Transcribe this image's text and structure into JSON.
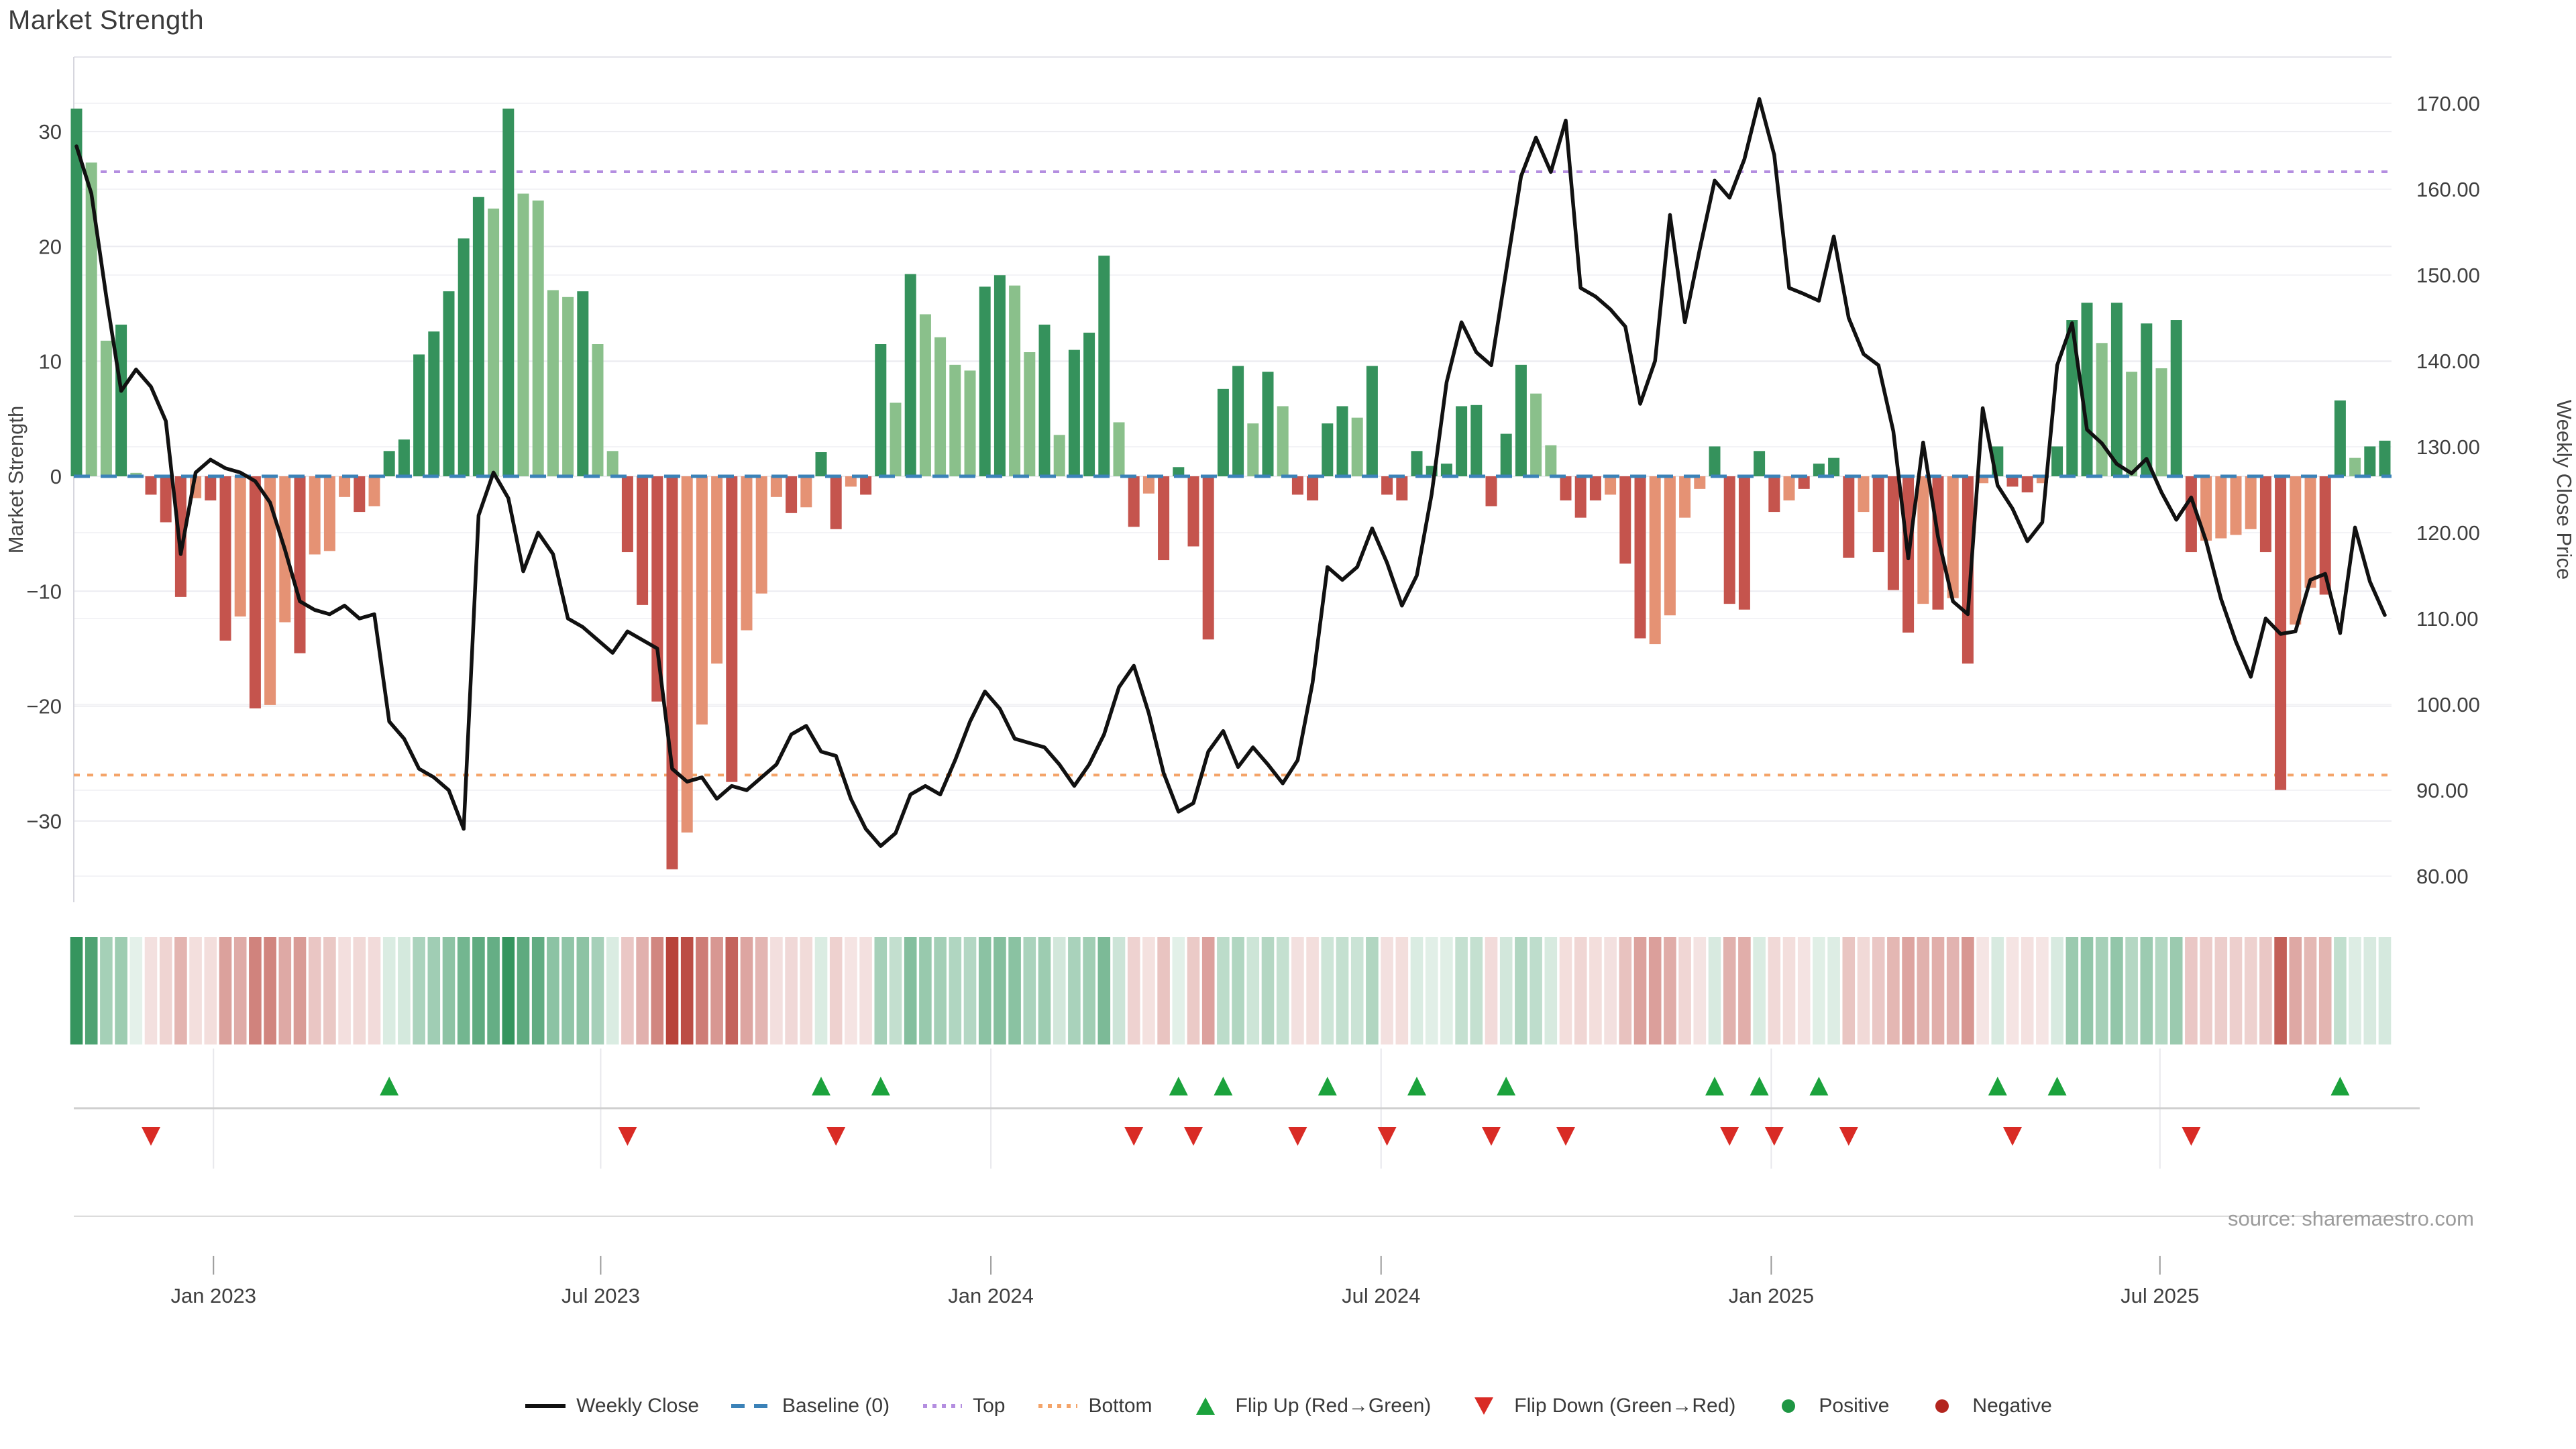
{
  "title": "Market Strength",
  "source": "source: sharemaestro.com",
  "axes": {
    "left_title": "Market Strength",
    "right_title": "Weekly Close Price",
    "left_ticks": [
      {
        "v": 30,
        "label": "30"
      },
      {
        "v": 20,
        "label": "20"
      },
      {
        "v": 10,
        "label": "10"
      },
      {
        "v": 0,
        "label": "0"
      },
      {
        "v": -10,
        "label": "−10"
      },
      {
        "v": -20,
        "label": "−20"
      },
      {
        "v": -30,
        "label": "−30"
      }
    ],
    "right_ticks": [
      {
        "v": 170,
        "label": "170.00"
      },
      {
        "v": 160,
        "label": "160.00"
      },
      {
        "v": 150,
        "label": "150.00"
      },
      {
        "v": 140,
        "label": "140.00"
      },
      {
        "v": 130,
        "label": "130.00"
      },
      {
        "v": 120,
        "label": "120.00"
      },
      {
        "v": 110,
        "label": "110.00"
      },
      {
        "v": 100,
        "label": "100.00"
      },
      {
        "v": 90,
        "label": "90.00"
      },
      {
        "v": 80,
        "label": "80.00"
      }
    ],
    "x_ticks": [
      {
        "week": 9.2,
        "label": "Jan 2023"
      },
      {
        "week": 35.2,
        "label": "Jul 2023"
      },
      {
        "week": 61.4,
        "label": "Jan 2024"
      },
      {
        "week": 87.6,
        "label": "Jul 2024"
      },
      {
        "week": 113.8,
        "label": "Jan 2025"
      },
      {
        "week": 139.9,
        "label": "Jul 2025"
      }
    ]
  },
  "legend": [
    {
      "label": "Weekly Close",
      "type": "line",
      "color": "#111111"
    },
    {
      "label": "Baseline (0)",
      "type": "dash",
      "color": "#3b82b8"
    },
    {
      "label": "Top",
      "type": "dot",
      "color": "#b48ee0"
    },
    {
      "label": "Bottom",
      "type": "dot",
      "color": "#f4a469"
    },
    {
      "label": "Flip Up (Red→Green)",
      "type": "tri-up",
      "color": "#1ba23c"
    },
    {
      "label": "Flip Down (Green→Red)",
      "type": "tri-down",
      "color": "#d92b25"
    },
    {
      "label": "Positive",
      "type": "circle",
      "color": "#1e9643"
    },
    {
      "label": "Negative",
      "type": "circle",
      "color": "#b3251e"
    }
  ],
  "chart_data": {
    "type": "bar+line",
    "weeks": 156,
    "bar_series": "Market Strength (weekly)",
    "line_series": "Weekly Close",
    "baseline": 0,
    "top": 26.5,
    "bottom": -26,
    "left_range": [
      -37,
      36.5
    ],
    "right_range": [
      76.9,
      175.4
    ],
    "grid": true,
    "legend_position": "bottom",
    "strength": [
      32,
      27.3,
      11.8,
      13.2,
      0.3,
      -1.6,
      -4,
      -10.5,
      -1.9,
      -2.1,
      -14.3,
      -12.2,
      -20.2,
      -19.9,
      -12.7,
      -15.4,
      -6.8,
      -6.5,
      -1.8,
      -3.1,
      -2.6,
      2.2,
      3.2,
      10.6,
      12.6,
      16.1,
      20.7,
      24.3,
      23.3,
      32,
      24.6,
      24,
      16.2,
      15.6,
      16.1,
      11.5,
      2.2,
      -6.6,
      -11.2,
      -19.6,
      -34.2,
      -31,
      -21.6,
      -16.3,
      -26.6,
      -13.4,
      -10.2,
      -1.8,
      -3.2,
      -2.7,
      2.1,
      -4.6,
      -0.9,
      -1.6,
      11.5,
      6.4,
      17.6,
      14.1,
      12.1,
      9.7,
      9.2,
      16.5,
      17.5,
      16.6,
      10.8,
      13.2,
      3.6,
      11,
      12.5,
      19.2,
      4.7,
      -4.4,
      -1.5,
      -7.3,
      0.8,
      -6.1,
      -14.2,
      7.6,
      9.6,
      4.6,
      9.1,
      6.1,
      -1.6,
      -2.1,
      4.6,
      6.1,
      5.1,
      9.6,
      -1.6,
      -2.1,
      2.2,
      0.9,
      1.1,
      6.1,
      6.2,
      -2.6,
      3.7,
      9.7,
      7.2,
      2.7,
      -2.1,
      -3.6,
      -2.1,
      -1.6,
      -7.6,
      -14.1,
      -14.6,
      -12.1,
      -3.6,
      -1.1,
      2.6,
      -11.1,
      -11.6,
      2.2,
      -3.1,
      -2.1,
      -1.1,
      1.1,
      1.6,
      -7.1,
      -3.1,
      -6.6,
      -9.9,
      -13.6,
      -11.1,
      -11.6,
      -10.6,
      -16.3,
      -0.6,
      2.6,
      -0.9,
      -1.4,
      -0.6,
      2.6,
      13.6,
      15.1,
      11.6,
      15.1,
      9.1,
      13.3,
      9.4,
      13.6,
      -6.6,
      -5.6,
      -5.4,
      -5.1,
      -4.6,
      -6.6,
      -27.3,
      -12.9,
      -9.7,
      -10.3,
      6.6,
      1.6,
      2.6,
      3.1
    ],
    "shade": "DLLDLdddsddsdssdsssdsDDDDDDDLDLLLLDLLddddsssdsssdsDdsdDLDLLLLDDLLDLDDDLdsdDddDDLDLddDDLDddDDDDDdDDLLdddsddssssDddDdsdDDdsdddsdsdsDddsDDDLDLDLDdssssddssdDLDD",
    "close": [
      165,
      159.5,
      147.5,
      136.5,
      139,
      137,
      133,
      117.5,
      127,
      128.5,
      127.5,
      127,
      126,
      123.5,
      118,
      112,
      111,
      110.5,
      111.5,
      110,
      110.5,
      98,
      96,
      92.5,
      91.5,
      90,
      85.5,
      122,
      127,
      124,
      115.5,
      120,
      117.5,
      110,
      109,
      107.5,
      106,
      108.5,
      107.5,
      106.5,
      92.5,
      91,
      91.5,
      89,
      90.5,
      90,
      91.5,
      93,
      96.5,
      97.5,
      94.5,
      94,
      89,
      85.5,
      83.5,
      85,
      89.5,
      90.5,
      89.5,
      93.5,
      98,
      101.5,
      99.5,
      96,
      95.5,
      95,
      93,
      90.5,
      93,
      96.5,
      102,
      104.5,
      99,
      92,
      87.5,
      88.5,
      94.5,
      96.9,
      92.7,
      95,
      93,
      90.8,
      93.5,
      102.5,
      116,
      114.5,
      116,
      120.5,
      116.5,
      111.5,
      115,
      124.5,
      137.5,
      144.5,
      141,
      139.5,
      150.5,
      161.5,
      166,
      162,
      168,
      148.5,
      147.5,
      146,
      144,
      135,
      140,
      157,
      144.5,
      153,
      161,
      159,
      163.5,
      170.5,
      164,
      148.5,
      147.8,
      147,
      154.5,
      145,
      140.8,
      139.5,
      131.8,
      117,
      130.5,
      119.5,
      112,
      110.5,
      134.5,
      125.5,
      122.8,
      119,
      121.2,
      139.5,
      144.4,
      132,
      130.4,
      128,
      126.9,
      128.6,
      124.7,
      121.5,
      124.1,
      119,
      112.3,
      107.3,
      103.2,
      110,
      108.2,
      108.5,
      114.5,
      115.2,
      108.3,
      120.6,
      114.3,
      110.4
    ],
    "flip_up_weeks": [
      21,
      50,
      54,
      74,
      77,
      84,
      90,
      96,
      110,
      113,
      117,
      129,
      133,
      152
    ],
    "flip_down_weeks": [
      5,
      37,
      51,
      71,
      75,
      82,
      88,
      95,
      100,
      111,
      114,
      119,
      130,
      142
    ],
    "colors": {
      "bar_dark_green": "#35925c",
      "bar_light_green": "#8ac08b",
      "bar_dark_red": "#c5544d",
      "bar_salmon": "#e59274",
      "heat_green": "#2f925a",
      "heat_red": "#b8433a",
      "line": "#111111",
      "baseline": "#3b82b8",
      "top": "#b48ee0",
      "bottom": "#f4a469",
      "flip_up": "#1ba23c",
      "flip_down": "#d92b25",
      "positive": "#1e9643",
      "negative": "#b3251e"
    }
  }
}
